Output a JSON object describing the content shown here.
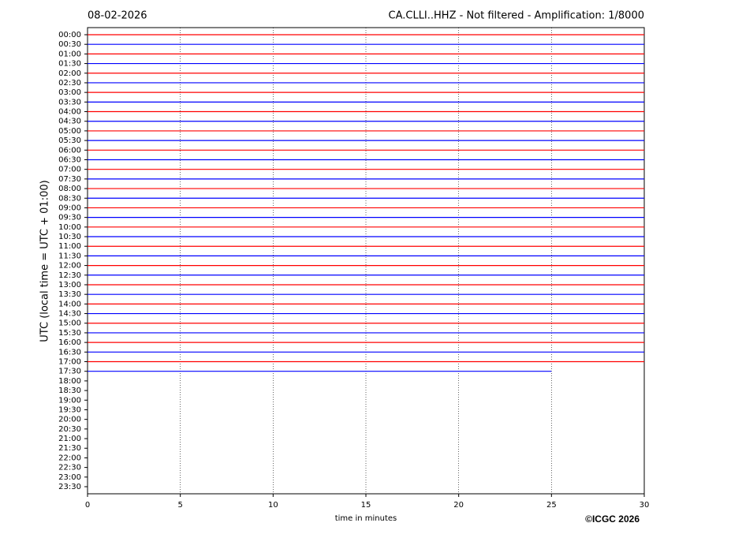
{
  "chart_data": {
    "type": "helicorder",
    "date": "08-02-2026",
    "title": "CA.CLLI..HHZ - Not filtered - Amplification: 1/8000",
    "ylabel": "UTC (local time = UTC + 01:00)",
    "xlabel": "time in minutes",
    "copyright": "©ICGC 2026",
    "xlim": [
      0,
      30
    ],
    "xticks": [
      0,
      5,
      10,
      15,
      20,
      25,
      30
    ],
    "grid": true,
    "colors": [
      "#ff0000",
      "#0000ff"
    ],
    "categories": [
      "00:00",
      "00:30",
      "01:00",
      "01:30",
      "02:00",
      "02:30",
      "03:00",
      "03:30",
      "04:00",
      "04:30",
      "05:00",
      "05:30",
      "06:00",
      "06:30",
      "07:00",
      "07:30",
      "08:00",
      "08:30",
      "09:00",
      "09:30",
      "10:00",
      "10:30",
      "11:00",
      "11:30",
      "12:00",
      "12:30",
      "13:00",
      "13:30",
      "14:00",
      "14:30",
      "15:00",
      "15:30",
      "16:00",
      "16:30",
      "17:00",
      "17:30",
      "18:00",
      "18:30",
      "19:00",
      "19:30",
      "20:00",
      "20:30",
      "21:00",
      "21:30",
      "22:00",
      "22:30",
      "23:00",
      "23:30"
    ],
    "values": [
      30,
      30,
      30,
      30,
      30,
      30,
      30,
      30,
      30,
      30,
      30,
      30,
      30,
      30,
      30,
      30,
      30,
      30,
      30,
      30,
      30,
      30,
      30,
      30,
      30,
      30,
      30,
      30,
      30,
      30,
      30,
      30,
      30,
      30,
      30,
      25,
      null,
      null,
      null,
      null,
      null,
      null,
      null,
      null,
      null,
      null,
      null,
      null
    ]
  }
}
